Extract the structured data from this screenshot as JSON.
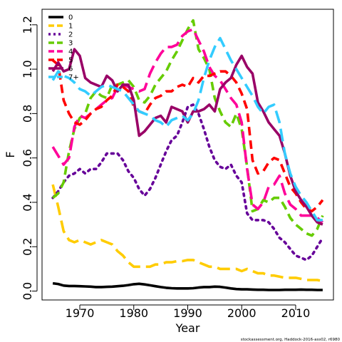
{
  "chart_data": {
    "type": "line",
    "xlabel": "Year",
    "ylabel": "F",
    "xlim": [
      1963,
      2017
    ],
    "ylim": [
      -0.04,
      1.27
    ],
    "xticks": [
      1970,
      1980,
      1990,
      2000,
      2010
    ],
    "yticks": [
      0.0,
      0.2,
      0.4,
      0.6,
      0.8,
      1.0,
      1.2
    ],
    "ytick_labels": [
      "0.0",
      "0.2",
      "0.4",
      "0.6",
      "0.8",
      "1.0",
      "1.2"
    ],
    "grid": false,
    "legend_position": "top-left",
    "credit": "stockassessment.org, Haddock-2016-ass02, r6980",
    "series": [
      {
        "name": "0",
        "color": "#000000",
        "dash": "solid",
        "x": [
          1965,
          1966,
          1967,
          1968,
          1969,
          1970,
          1971,
          1972,
          1973,
          1974,
          1975,
          1976,
          1977,
          1978,
          1979,
          1980,
          1981,
          1982,
          1983,
          1984,
          1985,
          1986,
          1987,
          1988,
          1989,
          1990,
          1991,
          1992,
          1993,
          1994,
          1995,
          1996,
          1997,
          1998,
          1999,
          2000,
          2001,
          2002,
          2003,
          2004,
          2005,
          2006,
          2007,
          2008,
          2009,
          2010,
          2011,
          2012,
          2013,
          2014,
          2015
        ],
        "values": [
          0.035,
          0.032,
          0.025,
          0.023,
          0.023,
          0.022,
          0.021,
          0.02,
          0.018,
          0.018,
          0.019,
          0.02,
          0.022,
          0.024,
          0.027,
          0.031,
          0.033,
          0.03,
          0.026,
          0.022,
          0.018,
          0.015,
          0.013,
          0.012,
          0.012,
          0.012,
          0.013,
          0.016,
          0.018,
          0.018,
          0.02,
          0.019,
          0.016,
          0.012,
          0.009,
          0.008,
          0.008,
          0.007,
          0.006,
          0.006,
          0.005,
          0.005,
          0.005,
          0.006,
          0.006,
          0.006,
          0.007,
          0.006,
          0.006,
          0.005,
          0.005
        ]
      },
      {
        "name": "1",
        "color": "#FFCC00",
        "dash": "long",
        "x": [
          1965,
          1966,
          1967,
          1968,
          1969,
          1970,
          1971,
          1972,
          1973,
          1974,
          1975,
          1976,
          1977,
          1978,
          1979,
          1980,
          1981,
          1982,
          1983,
          1984,
          1985,
          1986,
          1987,
          1988,
          1989,
          1990,
          1991,
          1992,
          1993,
          1994,
          1995,
          1996,
          1997,
          1998,
          1999,
          2000,
          2001,
          2002,
          2003,
          2004,
          2005,
          2006,
          2007,
          2008,
          2009,
          2010,
          2011,
          2012,
          2013,
          2014,
          2015
        ],
        "values": [
          0.48,
          0.38,
          0.27,
          0.23,
          0.22,
          0.23,
          0.22,
          0.21,
          0.22,
          0.23,
          0.22,
          0.21,
          0.18,
          0.16,
          0.13,
          0.11,
          0.11,
          0.11,
          0.11,
          0.12,
          0.12,
          0.13,
          0.13,
          0.135,
          0.135,
          0.14,
          0.14,
          0.13,
          0.12,
          0.11,
          0.11,
          0.1,
          0.1,
          0.1,
          0.1,
          0.09,
          0.1,
          0.09,
          0.08,
          0.08,
          0.07,
          0.07,
          0.065,
          0.06,
          0.06,
          0.06,
          0.055,
          0.05,
          0.05,
          0.05,
          0.045
        ]
      },
      {
        "name": "2",
        "color": "#660099",
        "dash": "dotted",
        "x": [
          1965,
          1966,
          1967,
          1968,
          1969,
          1970,
          1971,
          1972,
          1973,
          1974,
          1975,
          1976,
          1977,
          1978,
          1979,
          1980,
          1981,
          1982,
          1983,
          1984,
          1985,
          1986,
          1987,
          1988,
          1989,
          1990,
          1991,
          1992,
          1993,
          1994,
          1995,
          1996,
          1997,
          1998,
          1999,
          2000,
          2001,
          2002,
          2003,
          2004,
          2005,
          2006,
          2007,
          2008,
          2009,
          2010,
          2011,
          2012,
          2013,
          2014,
          2015
        ],
        "values": [
          0.42,
          0.45,
          0.49,
          0.52,
          0.53,
          0.55,
          0.53,
          0.55,
          0.55,
          0.58,
          0.62,
          0.62,
          0.62,
          0.59,
          0.54,
          0.51,
          0.46,
          0.43,
          0.46,
          0.51,
          0.57,
          0.63,
          0.68,
          0.7,
          0.76,
          0.83,
          0.84,
          0.8,
          0.73,
          0.65,
          0.59,
          0.56,
          0.55,
          0.57,
          0.52,
          0.49,
          0.35,
          0.32,
          0.32,
          0.32,
          0.31,
          0.28,
          0.24,
          0.22,
          0.19,
          0.16,
          0.15,
          0.14,
          0.16,
          0.2,
          0.24
        ]
      },
      {
        "name": "3",
        "color": "#66CC00",
        "dash": "dashed",
        "x": [
          1965,
          1966,
          1967,
          1968,
          1969,
          1970,
          1971,
          1972,
          1973,
          1974,
          1975,
          1976,
          1977,
          1978,
          1979,
          1980,
          1981,
          1982,
          1983,
          1984,
          1985,
          1986,
          1987,
          1988,
          1989,
          1990,
          1991,
          1992,
          1993,
          1994,
          1995,
          1996,
          1997,
          1998,
          1999,
          2000,
          2001,
          2002,
          2003,
          2004,
          2005,
          2006,
          2007,
          2008,
          2009,
          2010,
          2011,
          2012,
          2013,
          2014,
          2015
        ],
        "values": [
          0.42,
          0.44,
          0.49,
          0.63,
          0.73,
          0.78,
          0.8,
          0.87,
          0.9,
          0.88,
          0.87,
          0.93,
          0.93,
          0.94,
          0.95,
          0.92,
          0.86,
          0.85,
          0.88,
          0.93,
          0.96,
          0.99,
          1.04,
          1.08,
          1.13,
          1.18,
          1.22,
          1.09,
          1.05,
          1.0,
          0.87,
          0.81,
          0.76,
          0.74,
          0.8,
          0.73,
          0.56,
          0.36,
          0.37,
          0.41,
          0.4,
          0.42,
          0.42,
          0.38,
          0.33,
          0.3,
          0.28,
          0.26,
          0.25,
          0.28,
          0.34
        ]
      },
      {
        "name": "4",
        "color": "#FF0099",
        "dash": "long",
        "x": [
          1965,
          1966,
          1967,
          1968,
          1969,
          1970,
          1971,
          1972,
          1973,
          1974,
          1975,
          1976,
          1977,
          1978,
          1979,
          1980,
          1981,
          1982,
          1983,
          1984,
          1985,
          1986,
          1987,
          1988,
          1989,
          1990,
          1991,
          1992,
          1993,
          1994,
          1995,
          1996,
          1997,
          1998,
          1999,
          2000,
          2001,
          2002,
          2003,
          2004,
          2005,
          2006,
          2007,
          2008,
          2009,
          2010,
          2011,
          2012,
          2013,
          2014,
          2015
        ],
        "values": [
          0.65,
          0.61,
          0.57,
          0.6,
          0.74,
          0.79,
          0.78,
          0.8,
          0.82,
          0.84,
          0.86,
          0.87,
          0.92,
          0.93,
          0.92,
          0.91,
          0.9,
          0.91,
          0.98,
          1.03,
          1.07,
          1.1,
          1.1,
          1.11,
          1.15,
          1.17,
          1.18,
          1.13,
          1.08,
          1.01,
          0.97,
          0.95,
          0.91,
          0.87,
          0.84,
          0.76,
          0.55,
          0.39,
          0.37,
          0.4,
          0.47,
          0.48,
          0.52,
          0.44,
          0.39,
          0.37,
          0.34,
          0.34,
          0.34,
          0.33,
          0.31
        ]
      },
      {
        "name": "5",
        "color": "#FF0000",
        "dash": "dashed",
        "x": [
          1965,
          1966,
          1967,
          1968,
          1969,
          1970,
          1971,
          1972,
          1973,
          1974,
          1975,
          1976,
          1977,
          1978,
          1979,
          1980,
          1981,
          1982,
          1983,
          1984,
          1985,
          1986,
          1987,
          1988,
          1989,
          1990,
          1991,
          1992,
          1993,
          1994,
          1995,
          1996,
          1997,
          1998,
          1999,
          2000,
          2001,
          2002,
          2003,
          2004,
          2005,
          2006,
          2007,
          2008,
          2009,
          2010,
          2011,
          2012,
          2013,
          2014,
          2015
        ],
        "values": [
          1.04,
          1.02,
          0.86,
          0.8,
          0.76,
          0.75,
          0.77,
          0.8,
          0.82,
          0.83,
          0.86,
          0.88,
          0.93,
          0.92,
          0.9,
          0.83,
          0.81,
          0.8,
          0.84,
          0.87,
          0.88,
          0.9,
          0.9,
          0.92,
          0.93,
          0.92,
          0.96,
          0.94,
          0.97,
          0.97,
          0.98,
          0.99,
          0.99,
          0.97,
          0.94,
          0.89,
          0.82,
          0.59,
          0.53,
          0.54,
          0.58,
          0.6,
          0.59,
          0.53,
          0.47,
          0.44,
          0.4,
          0.37,
          0.36,
          0.38,
          0.41
        ]
      },
      {
        "name": "6",
        "color": "#990066",
        "dash": "solid",
        "x": [
          1965,
          1966,
          1967,
          1968,
          1969,
          1970,
          1971,
          1972,
          1973,
          1974,
          1975,
          1976,
          1977,
          1978,
          1979,
          1980,
          1981,
          1982,
          1983,
          1984,
          1985,
          1986,
          1987,
          1988,
          1989,
          1990,
          1991,
          1992,
          1993,
          1994,
          1995,
          1996,
          1997,
          1998,
          1999,
          2000,
          2001,
          2002,
          2003,
          2004,
          2005,
          2006,
          2007,
          2008,
          2009,
          2010,
          2011,
          2012,
          2013,
          2014,
          2015
        ],
        "values": [
          0.99,
          1.03,
          0.99,
          1.0,
          1.09,
          1.06,
          0.96,
          0.94,
          0.93,
          0.92,
          0.97,
          0.95,
          0.9,
          0.93,
          0.93,
          0.86,
          0.7,
          0.72,
          0.75,
          0.78,
          0.79,
          0.76,
          0.83,
          0.82,
          0.81,
          0.76,
          0.81,
          0.81,
          0.82,
          0.84,
          0.81,
          0.91,
          0.94,
          0.96,
          1.02,
          1.06,
          1.01,
          0.98,
          0.85,
          0.81,
          0.76,
          0.73,
          0.7,
          0.62,
          0.52,
          0.45,
          0.41,
          0.38,
          0.34,
          0.31,
          0.3
        ]
      },
      {
        "name": "7+",
        "color": "#33CCFF",
        "dash": "long",
        "x": [
          1965,
          1966,
          1967,
          1968,
          1969,
          1970,
          1971,
          1972,
          1973,
          1974,
          1975,
          1976,
          1977,
          1978,
          1979,
          1980,
          1981,
          1982,
          1983,
          1984,
          1985,
          1986,
          1987,
          1988,
          1989,
          1990,
          1991,
          1992,
          1993,
          1994,
          1995,
          1996,
          1997,
          1998,
          1999,
          2000,
          2001,
          2002,
          2003,
          2004,
          2005,
          2006,
          2007,
          2008,
          2009,
          2010,
          2011,
          2012,
          2013,
          2014,
          2015
        ],
        "values": [
          0.95,
          0.99,
          0.97,
          0.96,
          0.94,
          0.91,
          0.9,
          0.88,
          0.9,
          0.92,
          0.93,
          0.92,
          0.91,
          0.9,
          0.87,
          0.84,
          0.81,
          0.8,
          0.79,
          0.77,
          0.76,
          0.74,
          0.77,
          0.78,
          0.79,
          0.77,
          0.8,
          0.86,
          0.96,
          1.04,
          1.1,
          1.14,
          1.09,
          1.04,
          1.0,
          0.96,
          0.92,
          0.88,
          0.83,
          0.8,
          0.83,
          0.84,
          0.76,
          0.62,
          0.53,
          0.47,
          0.43,
          0.4,
          0.36,
          0.32,
          0.32
        ]
      }
    ]
  }
}
